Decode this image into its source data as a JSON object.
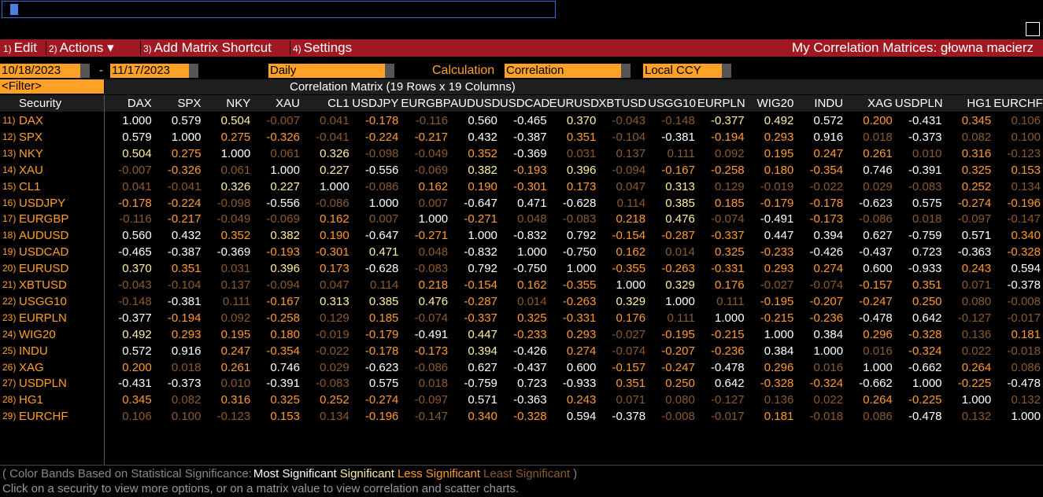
{
  "menu": {
    "items": [
      {
        "num": "1)",
        "label": "Edit"
      },
      {
        "num": "2)",
        "label": "Actions ▾"
      },
      {
        "num": "3)",
        "label": "Add Matrix Shortcut"
      },
      {
        "num": "4)",
        "label": "Settings"
      }
    ],
    "title": "My Correlation Matrices: głowna macierz"
  },
  "controls": {
    "start_date": "10/18/2023",
    "dash": "-",
    "end_date": "11/17/2023",
    "frequency": "Daily",
    "calculation_label": "Calculation",
    "calculation": "Correlation",
    "currency": "Local CCY",
    "filter": "<Filter>",
    "matrix_title": "Correlation Matrix (19 Rows x 19 Columns)"
  },
  "table": {
    "header": "Security",
    "columns": [
      "DAX",
      "SPX",
      "NKY",
      "XAU",
      "CL1",
      "USDJPY",
      "EURGBP",
      "AUDUSD",
      "USDCAD",
      "EURUSD",
      "XBTUSD",
      "USGG10",
      "EURPLN",
      "WIG20",
      "INDU",
      "XAG",
      "USDPLN",
      "HG1",
      "EURCHF"
    ],
    "rows": [
      {
        "num": "11)",
        "security": "DAX",
        "cells": [
          "1.000",
          "0.579",
          "0.504",
          "-0.007",
          "0.041",
          "-0.178",
          "-0.116",
          "0.560",
          "-0.465",
          "0.370",
          "-0.043",
          "-0.148",
          "-0.377",
          "0.492",
          "0.572",
          "0.200",
          "-0.431",
          "0.345",
          "0.106"
        ],
        "bands": [
          0,
          0,
          1,
          3,
          3,
          2,
          3,
          0,
          0,
          1,
          3,
          3,
          1,
          1,
          0,
          2,
          0,
          2,
          3
        ]
      },
      {
        "num": "12)",
        "security": "SPX",
        "cells": [
          "0.579",
          "1.000",
          "0.275",
          "-0.326",
          "-0.041",
          "-0.224",
          "-0.217",
          "0.432",
          "-0.387",
          "0.351",
          "-0.104",
          "-0.381",
          "-0.194",
          "0.293",
          "0.916",
          "0.018",
          "-0.373",
          "0.082",
          "0.100"
        ],
        "bands": [
          0,
          0,
          2,
          2,
          3,
          2,
          2,
          0,
          0,
          2,
          3,
          0,
          2,
          2,
          0,
          3,
          0,
          3,
          3
        ]
      },
      {
        "num": "13)",
        "security": "NKY",
        "cells": [
          "0.504",
          "0.275",
          "1.000",
          "0.061",
          "0.326",
          "-0.098",
          "-0.049",
          "0.352",
          "-0.369",
          "0.031",
          "0.137",
          "0.111",
          "0.092",
          "0.195",
          "0.247",
          "0.261",
          "0.010",
          "0.316",
          "-0.123"
        ],
        "bands": [
          1,
          2,
          0,
          3,
          1,
          3,
          3,
          2,
          0,
          3,
          3,
          3,
          3,
          2,
          2,
          2,
          3,
          2,
          3
        ]
      },
      {
        "num": "14)",
        "security": "XAU",
        "cells": [
          "-0.007",
          "-0.326",
          "0.061",
          "1.000",
          "0.227",
          "-0.556",
          "-0.069",
          "0.382",
          "-0.193",
          "0.396",
          "-0.094",
          "-0.167",
          "-0.258",
          "0.180",
          "-0.354",
          "0.746",
          "-0.391",
          "0.325",
          "0.153"
        ],
        "bands": [
          3,
          2,
          3,
          0,
          1,
          0,
          3,
          1,
          2,
          1,
          3,
          2,
          2,
          2,
          2,
          0,
          0,
          2,
          2
        ]
      },
      {
        "num": "15)",
        "security": "CL1",
        "cells": [
          "0.041",
          "-0.041",
          "0.326",
          "0.227",
          "1.000",
          "-0.086",
          "0.162",
          "0.190",
          "-0.301",
          "0.173",
          "0.047",
          "0.313",
          "0.129",
          "-0.019",
          "-0.022",
          "0.029",
          "-0.083",
          "0.252",
          "0.134"
        ],
        "bands": [
          3,
          3,
          1,
          1,
          0,
          3,
          2,
          2,
          2,
          2,
          3,
          1,
          3,
          3,
          3,
          3,
          3,
          2,
          3
        ]
      },
      {
        "num": "16)",
        "security": "USDJPY",
        "cells": [
          "-0.178",
          "-0.224",
          "-0.098",
          "-0.556",
          "-0.086",
          "1.000",
          "0.007",
          "-0.647",
          "0.471",
          "-0.628",
          "0.114",
          "0.385",
          "0.185",
          "-0.179",
          "-0.178",
          "-0.623",
          "0.575",
          "-0.274",
          "-0.196"
        ],
        "bands": [
          2,
          2,
          3,
          0,
          3,
          0,
          3,
          0,
          0,
          0,
          3,
          1,
          2,
          2,
          2,
          0,
          0,
          2,
          2
        ]
      },
      {
        "num": "17)",
        "security": "EURGBP",
        "cells": [
          "-0.116",
          "-0.217",
          "-0.049",
          "-0.069",
          "0.162",
          "0.007",
          "1.000",
          "-0.271",
          "0.048",
          "-0.083",
          "0.218",
          "0.476",
          "-0.074",
          "-0.491",
          "-0.173",
          "-0.086",
          "0.018",
          "-0.097",
          "-0.147"
        ],
        "bands": [
          3,
          2,
          3,
          3,
          2,
          3,
          0,
          2,
          3,
          3,
          2,
          1,
          3,
          0,
          2,
          3,
          3,
          3,
          3
        ]
      },
      {
        "num": "18)",
        "security": "AUDUSD",
        "cells": [
          "0.560",
          "0.432",
          "0.352",
          "0.382",
          "0.190",
          "-0.647",
          "-0.271",
          "1.000",
          "-0.832",
          "0.792",
          "-0.154",
          "-0.287",
          "-0.337",
          "0.447",
          "0.394",
          "0.627",
          "-0.759",
          "0.571",
          "0.340"
        ],
        "bands": [
          0,
          0,
          2,
          1,
          2,
          0,
          2,
          0,
          0,
          0,
          2,
          2,
          2,
          0,
          0,
          0,
          0,
          0,
          2
        ]
      },
      {
        "num": "19)",
        "security": "USDCAD",
        "cells": [
          "-0.465",
          "-0.387",
          "-0.369",
          "-0.193",
          "-0.301",
          "0.471",
          "0.048",
          "-0.832",
          "1.000",
          "-0.750",
          "0.162",
          "0.014",
          "0.325",
          "-0.233",
          "-0.426",
          "-0.437",
          "0.723",
          "-0.363",
          "-0.328"
        ],
        "bands": [
          0,
          0,
          0,
          2,
          2,
          1,
          3,
          0,
          0,
          0,
          2,
          3,
          2,
          2,
          0,
          0,
          0,
          0,
          2
        ]
      },
      {
        "num": "20)",
        "security": "EURUSD",
        "cells": [
          "0.370",
          "0.351",
          "0.031",
          "0.396",
          "0.173",
          "-0.628",
          "-0.083",
          "0.792",
          "-0.750",
          "1.000",
          "-0.355",
          "-0.263",
          "-0.331",
          "0.293",
          "0.274",
          "0.600",
          "-0.933",
          "0.243",
          "0.594"
        ],
        "bands": [
          1,
          2,
          3,
          1,
          2,
          0,
          3,
          0,
          0,
          0,
          2,
          2,
          2,
          2,
          2,
          0,
          0,
          2,
          0
        ]
      },
      {
        "num": "21)",
        "security": "XBTUSD",
        "cells": [
          "-0.043",
          "-0.104",
          "0.137",
          "-0.094",
          "0.047",
          "0.114",
          "0.218",
          "-0.154",
          "0.162",
          "-0.355",
          "1.000",
          "0.329",
          "0.176",
          "-0.027",
          "-0.074",
          "-0.157",
          "0.351",
          "0.071",
          "-0.378"
        ],
        "bands": [
          3,
          3,
          3,
          3,
          3,
          3,
          2,
          2,
          2,
          2,
          0,
          1,
          2,
          3,
          3,
          2,
          2,
          3,
          0
        ]
      },
      {
        "num": "22)",
        "security": "USGG10",
        "cells": [
          "-0.148",
          "-0.381",
          "0.111",
          "-0.167",
          "0.313",
          "0.385",
          "0.476",
          "-0.287",
          "0.014",
          "-0.263",
          "0.329",
          "1.000",
          "0.111",
          "-0.195",
          "-0.207",
          "-0.247",
          "0.250",
          "0.080",
          "-0.008"
        ],
        "bands": [
          3,
          0,
          3,
          2,
          1,
          1,
          1,
          2,
          3,
          2,
          1,
          0,
          3,
          2,
          2,
          2,
          2,
          3,
          3
        ]
      },
      {
        "num": "23)",
        "security": "EURPLN",
        "cells": [
          "-0.377",
          "-0.194",
          "0.092",
          "-0.258",
          "0.129",
          "0.185",
          "-0.074",
          "-0.337",
          "0.325",
          "-0.331",
          "0.176",
          "0.111",
          "1.000",
          "-0.215",
          "-0.236",
          "-0.478",
          "0.642",
          "-0.127",
          "-0.017"
        ],
        "bands": [
          0,
          2,
          3,
          2,
          3,
          2,
          3,
          2,
          2,
          2,
          2,
          3,
          0,
          2,
          2,
          0,
          0,
          3,
          3
        ]
      },
      {
        "num": "24)",
        "security": "WIG20",
        "cells": [
          "0.492",
          "0.293",
          "0.195",
          "0.180",
          "-0.019",
          "-0.179",
          "-0.491",
          "0.447",
          "-0.233",
          "0.293",
          "-0.027",
          "-0.195",
          "-0.215",
          "1.000",
          "0.384",
          "0.296",
          "-0.328",
          "0.136",
          "0.181"
        ],
        "bands": [
          1,
          2,
          2,
          2,
          3,
          2,
          0,
          1,
          2,
          2,
          3,
          2,
          2,
          0,
          0,
          2,
          2,
          3,
          2
        ]
      },
      {
        "num": "25)",
        "security": "INDU",
        "cells": [
          "0.572",
          "0.916",
          "0.247",
          "-0.354",
          "-0.022",
          "-0.178",
          "-0.173",
          "0.394",
          "-0.426",
          "0.274",
          "-0.074",
          "-0.207",
          "-0.236",
          "0.384",
          "1.000",
          "0.016",
          "-0.324",
          "0.022",
          "-0.018"
        ],
        "bands": [
          0,
          0,
          2,
          2,
          3,
          2,
          2,
          1,
          0,
          2,
          3,
          2,
          2,
          0,
          0,
          3,
          2,
          3,
          3
        ]
      },
      {
        "num": "26)",
        "security": "XAG",
        "cells": [
          "0.200",
          "0.018",
          "0.261",
          "0.746",
          "0.029",
          "-0.623",
          "-0.086",
          "0.627",
          "-0.437",
          "0.600",
          "-0.157",
          "-0.247",
          "-0.478",
          "0.296",
          "0.016",
          "1.000",
          "-0.662",
          "0.264",
          "0.086"
        ],
        "bands": [
          2,
          3,
          2,
          0,
          3,
          0,
          3,
          0,
          0,
          0,
          2,
          2,
          0,
          2,
          3,
          0,
          0,
          2,
          3
        ]
      },
      {
        "num": "27)",
        "security": "USDPLN",
        "cells": [
          "-0.431",
          "-0.373",
          "0.010",
          "-0.391",
          "-0.083",
          "0.575",
          "0.018",
          "-0.759",
          "0.723",
          "-0.933",
          "0.351",
          "0.250",
          "0.642",
          "-0.328",
          "-0.324",
          "-0.662",
          "1.000",
          "-0.225",
          "-0.478"
        ],
        "bands": [
          0,
          0,
          3,
          0,
          3,
          0,
          3,
          0,
          0,
          0,
          2,
          2,
          0,
          2,
          2,
          0,
          0,
          2,
          0
        ]
      },
      {
        "num": "28)",
        "security": "HG1",
        "cells": [
          "0.345",
          "0.082",
          "0.316",
          "0.325",
          "0.252",
          "-0.274",
          "-0.097",
          "0.571",
          "-0.363",
          "0.243",
          "0.071",
          "0.080",
          "-0.127",
          "0.136",
          "0.022",
          "0.264",
          "-0.225",
          "1.000",
          "0.132"
        ],
        "bands": [
          2,
          3,
          2,
          2,
          2,
          2,
          3,
          0,
          0,
          2,
          3,
          3,
          3,
          3,
          3,
          2,
          2,
          0,
          3
        ]
      },
      {
        "num": "29)",
        "security": "EURCHF",
        "cells": [
          "0.106",
          "0.100",
          "-0.123",
          "0.153",
          "0.134",
          "-0.196",
          "-0.147",
          "0.340",
          "-0.328",
          "0.594",
          "-0.378",
          "-0.008",
          "-0.017",
          "0.181",
          "-0.018",
          "0.086",
          "-0.478",
          "0.132",
          "1.000"
        ],
        "bands": [
          3,
          3,
          3,
          2,
          3,
          2,
          3,
          2,
          2,
          0,
          0,
          3,
          3,
          2,
          3,
          3,
          0,
          3,
          0
        ]
      }
    ]
  },
  "legend": {
    "open": "( Color Bands Based on Statistical Significance:",
    "bands": [
      {
        "label": "Most Significant",
        "color": "#ffffff"
      },
      {
        "label": "Significant",
        "color": "#fff0a0"
      },
      {
        "label": "Less Significant",
        "color": "#ff9a2e"
      },
      {
        "label": "Least Significant",
        "color": "#8c5a2a"
      }
    ],
    "close": ")"
  },
  "hint": "Click on a security to view more options, or on a matrix value to view correlation and scatter charts."
}
